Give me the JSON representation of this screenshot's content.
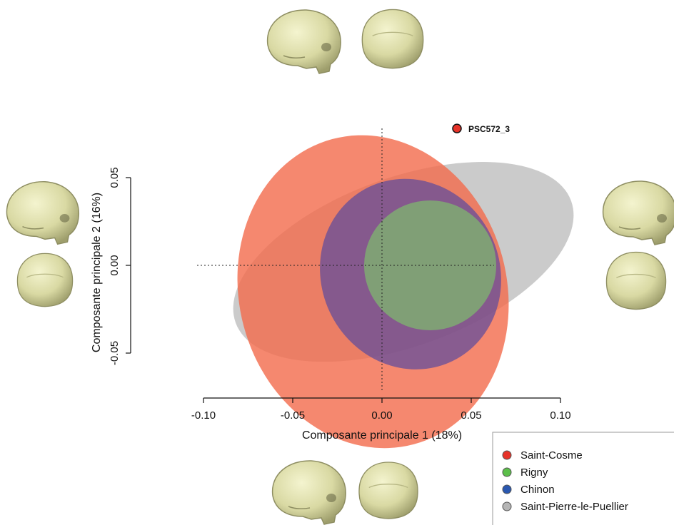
{
  "chart_data": {
    "type": "scatter",
    "xlabel": "Composante  principale 1 (18%)",
    "ylabel": "Composante principale 2 (16%)",
    "xlim": [
      -0.1,
      0.1
    ],
    "ylim": [
      -0.07,
      0.07
    ],
    "x_ticks": [
      "-0.10",
      "-0.05",
      "0.00",
      "0.05",
      "0.10"
    ],
    "y_ticks": [
      "-0.05",
      "0.00",
      "0.05"
    ],
    "x_tick_values": [
      -0.1,
      -0.05,
      0.0,
      0.05,
      0.1
    ],
    "y_tick_values": [
      -0.05,
      0.0,
      0.05
    ],
    "legend_position": "bottom-right",
    "ellipses": [
      {
        "name": "Saint-Pierre-le-Puellier",
        "color": "#b5b5b5",
        "cx": 0.012,
        "cy": 0.002,
        "rx": 0.1,
        "ry": 0.048,
        "angle_deg": -20,
        "opacity": 0.7
      },
      {
        "name": "Saint-Cosme",
        "color": "#f26a4b",
        "cx": -0.005,
        "cy": -0.015,
        "rx": 0.075,
        "ry": 0.09,
        "angle_deg": -15,
        "opacity": 0.8
      },
      {
        "name": "Chinon",
        "color": "#5a4a9e",
        "cx": 0.016,
        "cy": -0.005,
        "rx": 0.05,
        "ry": 0.055,
        "angle_deg": -25,
        "opacity": 0.7
      },
      {
        "name": "Rigny",
        "color": "#7ec46a",
        "cx": 0.027,
        "cy": 0.0,
        "rx": 0.037,
        "ry": 0.037,
        "angle_deg": 0,
        "opacity": 0.65
      }
    ],
    "points": [
      {
        "label": "PSC572_3",
        "x": 0.042,
        "y": 0.078,
        "color": "#e63329"
      }
    ],
    "legend": [
      {
        "label": "Saint-Cosme",
        "color": "#e63329"
      },
      {
        "label": "Rigny",
        "color": "#5cbf4a"
      },
      {
        "label": "Chinon",
        "color": "#2a58b0"
      },
      {
        "label": "Saint-Pierre-le-Puellier",
        "color": "#b5b5b5"
      }
    ]
  },
  "skull_icons": "skull-icon"
}
